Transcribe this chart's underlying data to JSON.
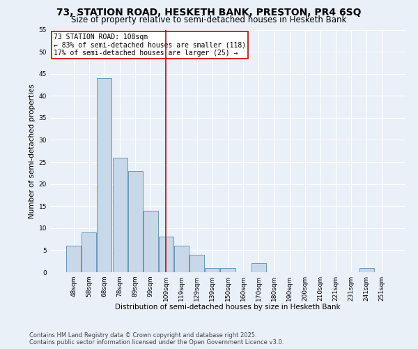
{
  "title1": "73, STATION ROAD, HESKETH BANK, PRESTON, PR4 6SQ",
  "title2": "Size of property relative to semi-detached houses in Hesketh Bank",
  "xlabel": "Distribution of semi-detached houses by size in Hesketh Bank",
  "ylabel": "Number of semi-detached properties",
  "bar_labels": [
    "48sqm",
    "58sqm",
    "68sqm",
    "78sqm",
    "89sqm",
    "99sqm",
    "109sqm",
    "119sqm",
    "129sqm",
    "139sqm",
    "150sqm",
    "160sqm",
    "170sqm",
    "180sqm",
    "190sqm",
    "200sqm",
    "210sqm",
    "221sqm",
    "231sqm",
    "241sqm",
    "251sqm"
  ],
  "bar_values": [
    6,
    9,
    44,
    26,
    23,
    14,
    8,
    6,
    4,
    1,
    1,
    0,
    2,
    0,
    0,
    0,
    0,
    0,
    0,
    1,
    0
  ],
  "bar_color": "#c8d8e8",
  "bar_edge_color": "#6699bb",
  "vline_x": 6,
  "vline_color": "#cc0000",
  "annotation_title": "73 STATION ROAD: 108sqm",
  "annotation_line1": "← 83% of semi-detached houses are smaller (118)",
  "annotation_line2": "17% of semi-detached houses are larger (25) →",
  "annotation_box_color": "#ffffff",
  "annotation_box_edge": "#cc0000",
  "ylim": [
    0,
    55
  ],
  "yticks": [
    0,
    5,
    10,
    15,
    20,
    25,
    30,
    35,
    40,
    45,
    50,
    55
  ],
  "footer1": "Contains HM Land Registry data © Crown copyright and database right 2025.",
  "footer2": "Contains public sector information licensed under the Open Government Licence v3.0.",
  "bg_color": "#eaf0f8",
  "grid_color": "#ffffff",
  "title1_fontsize": 10,
  "title2_fontsize": 8.5,
  "xlabel_fontsize": 7.5,
  "ylabel_fontsize": 7.5,
  "tick_fontsize": 6.5,
  "annot_fontsize": 7.0,
  "footer_fontsize": 6.0
}
